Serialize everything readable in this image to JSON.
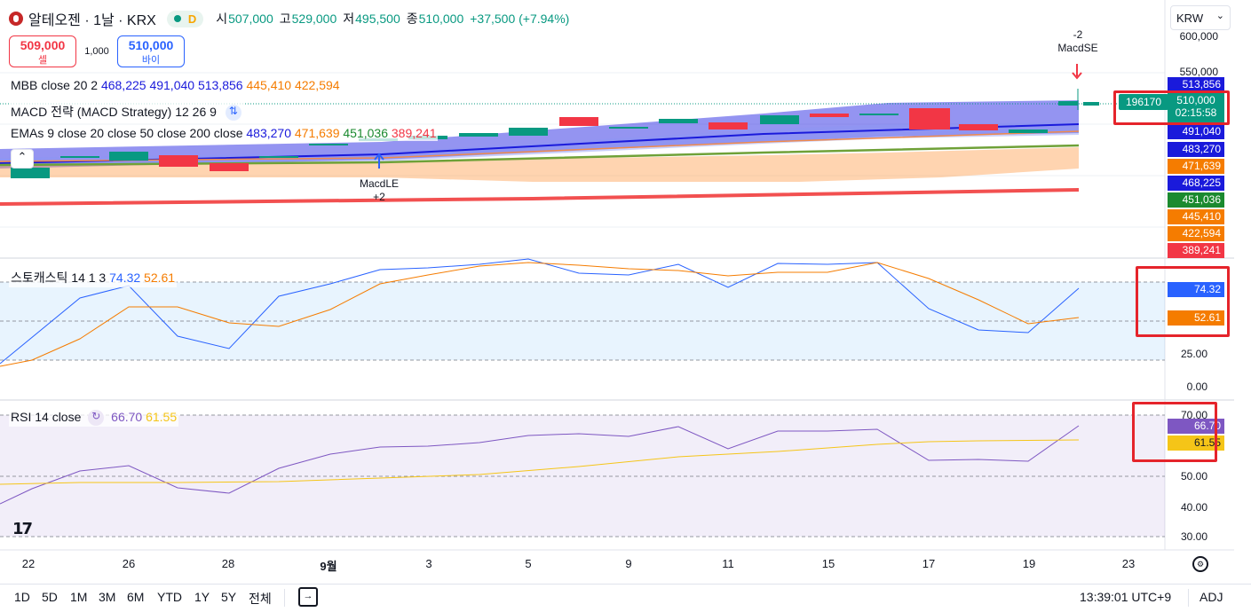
{
  "header": {
    "symbol_title": "알테오젠 · 1날 · KRX",
    "pill_letter": "D",
    "open_k": "시",
    "open_v": "507,000",
    "high_k": "고",
    "high_v": "529,000",
    "low_k": "저",
    "low_v": "495,500",
    "close_k": "종",
    "close_v": "510,000",
    "change": "+37,500 (+7.94%)"
  },
  "currency": "KRW",
  "trade": {
    "sell_price": "509,000",
    "sell_label": "셀",
    "qty": "1,000",
    "buy_price": "510,000",
    "buy_label": "바이"
  },
  "legends": {
    "mbb_name": "MBB close 20 2",
    "mbb_v1": "468,225",
    "mbb_v2": "491,040",
    "mbb_v3": "513,856",
    "mbb_v4": "445,410",
    "mbb_v5": "422,594",
    "macd_name": "MACD 전략 (MACD Strategy) 12 26 9",
    "ema_name": "EMAs 9 close 20 close 50 close 200 close",
    "ema_v1": "483,270",
    "ema_v2": "471,639",
    "ema_v3": "451,036",
    "ema_v4": "389,241",
    "stoch_name": "스토캐스틱 14 1 3",
    "stoch_k": "74.32",
    "stoch_d": "52.61",
    "rsi_name": "RSI 14 close",
    "rsi_v": "66.70",
    "rsi_ma": "61.55"
  },
  "signals": {
    "short_qty": "-2",
    "short_name": "MacdSE",
    "long_name": "MacdLE",
    "long_qty": "+2"
  },
  "price_axis": {
    "ticks": [
      "600,000",
      "550,000"
    ],
    "labels": [
      {
        "text": "513,856",
        "color": "#1a1adb"
      },
      {
        "text": "491,040",
        "color": "#1a1adb"
      },
      {
        "text": "483,270",
        "color": "#1a1adb"
      },
      {
        "text": "471,639",
        "color": "#f57c00"
      },
      {
        "text": "468,225",
        "color": "#1a1adb"
      },
      {
        "text": "451,036",
        "color": "#1b8a2f"
      },
      {
        "text": "445,410",
        "color": "#f57c00"
      },
      {
        "text": "422,594",
        "color": "#f57c00"
      },
      {
        "text": "389,241",
        "color": "#f23645"
      }
    ],
    "last_price": "510,000",
    "countdown": "02:15:58",
    "volume_tag": "196170"
  },
  "stoch_axis": {
    "t1": "25.00",
    "t2": "0.00"
  },
  "rsi_axis": {
    "t1": "70.00",
    "t2": "50.00",
    "t3": "40.00",
    "t4": "30.00"
  },
  "x_axis": [
    "22",
    "26",
    "28",
    "9월",
    "3",
    "5",
    "9",
    "11",
    "15",
    "17",
    "19",
    "23"
  ],
  "timeframes": [
    "1D",
    "5D",
    "1M",
    "3M",
    "6M",
    "YTD",
    "1Y",
    "5Y",
    "전체"
  ],
  "footer": {
    "clock": "13:39:01 UTC+9",
    "adj": "ADJ"
  },
  "colors": {
    "up": "#089981",
    "down": "#f23645",
    "ema9": "#1a1adb",
    "ema200": "#f23645",
    "stoch_k": "#2962ff",
    "stoch_d": "#f57c00",
    "rsi": "#7e57c2",
    "rsi_ma": "#f5c518"
  }
}
